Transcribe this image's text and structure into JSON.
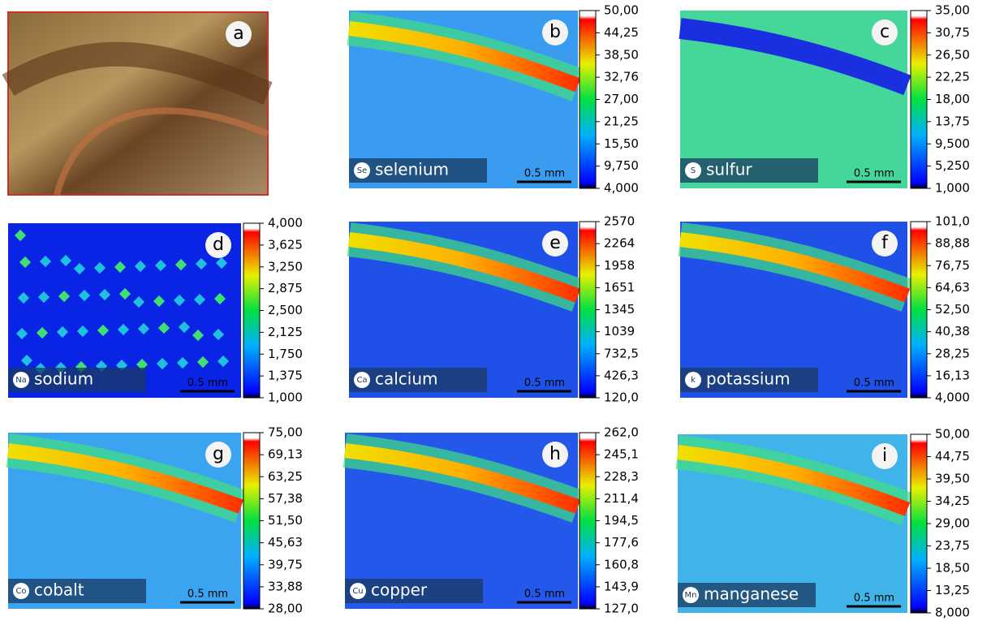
{
  "panels": [
    {
      "letter": "a"
    },
    {
      "letter": "b",
      "symbol": "Se",
      "element": "selenium",
      "scale": "0.5 mm",
      "colorbar": [
        "50,00",
        "44,25",
        "38,50",
        "32,76",
        "27,00",
        "21,25",
        "15,50",
        "9,750",
        "4,000"
      ]
    },
    {
      "letter": "c",
      "symbol": "S",
      "element": "sulfur",
      "scale": "0.5 mm",
      "colorbar": [
        "35,00",
        "30,75",
        "26,50",
        "22,25",
        "18,00",
        "13,75",
        "9,500",
        "5,250",
        "1,000"
      ]
    },
    {
      "letter": "d",
      "symbol": "Na",
      "element": "sodium",
      "scale": "0.5 mm",
      "colorbar": [
        "4,000",
        "3,625",
        "3,250",
        "2,875",
        "2,500",
        "2,125",
        "1,750",
        "1,375",
        "1,000"
      ]
    },
    {
      "letter": "e",
      "symbol": "Ca",
      "element": "calcium",
      "scale": "0.5 mm",
      "colorbar": [
        "2570",
        "2264",
        "1958",
        "1651",
        "1345",
        "1039",
        "732,5",
        "426,3",
        "120,0"
      ]
    },
    {
      "letter": "f",
      "symbol": "k",
      "element": "potassium",
      "scale": "0.5 mm",
      "colorbar": [
        "101,0",
        "88,88",
        "76,75",
        "64,63",
        "52,50",
        "40,38",
        "28,25",
        "16,13",
        "4,000"
      ]
    },
    {
      "letter": "g",
      "symbol": "Co",
      "element": "cobalt",
      "scale": "0.5 mm",
      "colorbar": [
        "75,00",
        "69,13",
        "63,25",
        "57,38",
        "51,50",
        "45,63",
        "39,75",
        "33,88",
        "28,00"
      ]
    },
    {
      "letter": "h",
      "symbol": "Cu",
      "element": "copper",
      "scale": "0.5 mm",
      "colorbar": [
        "262,0",
        "245,1",
        "228,3",
        "211,4",
        "194,5",
        "177,6",
        "160,8",
        "143,9",
        "127,0"
      ]
    },
    {
      "letter": "i",
      "symbol": "Mn",
      "element": "manganese",
      "scale": "0.5 mm",
      "colorbar": [
        "50,00",
        "44,75",
        "39,50",
        "34,25",
        "29,00",
        "23,75",
        "18,50",
        "13,25",
        "8,000"
      ]
    }
  ]
}
